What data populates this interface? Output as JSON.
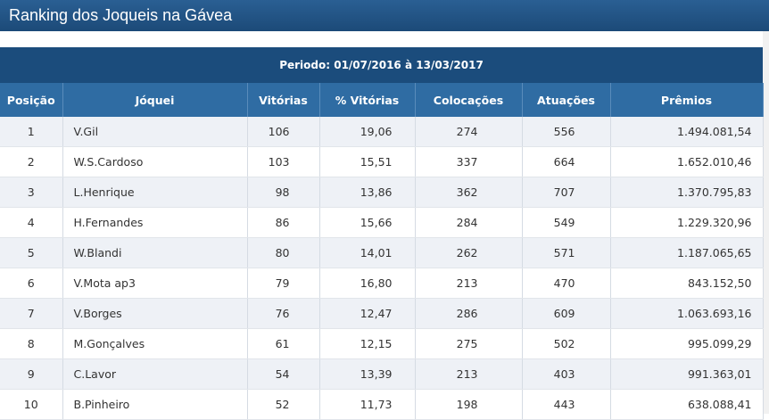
{
  "header": {
    "title": "Ranking dos Joqueis na Gávea"
  },
  "table": {
    "period": "Periodo: 01/07/2016 à 13/03/2017",
    "headers": [
      "Posição",
      "Jóquei",
      "Vitórias",
      "% Vitórias",
      "Colocações",
      "Atuações",
      "Prêmios"
    ],
    "rows": [
      [
        "1",
        "V.Gil",
        "106",
        "19,06",
        "274",
        "556",
        "1.494.081,54"
      ],
      [
        "2",
        "W.S.Cardoso",
        "103",
        "15,51",
        "337",
        "664",
        "1.652.010,46"
      ],
      [
        "3",
        "L.Henrique",
        "98",
        "13,86",
        "362",
        "707",
        "1.370.795,83"
      ],
      [
        "4",
        "H.Fernandes",
        "86",
        "15,66",
        "284",
        "549",
        "1.229.320,96"
      ],
      [
        "5",
        "W.Blandi",
        "80",
        "14,01",
        "262",
        "571",
        "1.187.065,65"
      ],
      [
        "6",
        "V.Mota ap3",
        "79",
        "16,80",
        "213",
        "470",
        "843.152,50"
      ],
      [
        "7",
        "V.Borges",
        "76",
        "12,47",
        "286",
        "609",
        "1.063.693,16"
      ],
      [
        "8",
        "M.Gonçalves",
        "61",
        "12,15",
        "275",
        "502",
        "995.099,29"
      ],
      [
        "9",
        "C.Lavor",
        "54",
        "13,39",
        "213",
        "403",
        "991.363,01"
      ],
      [
        "10",
        "B.Pinheiro",
        "52",
        "11,73",
        "198",
        "443",
        "638.088,41"
      ]
    ]
  }
}
